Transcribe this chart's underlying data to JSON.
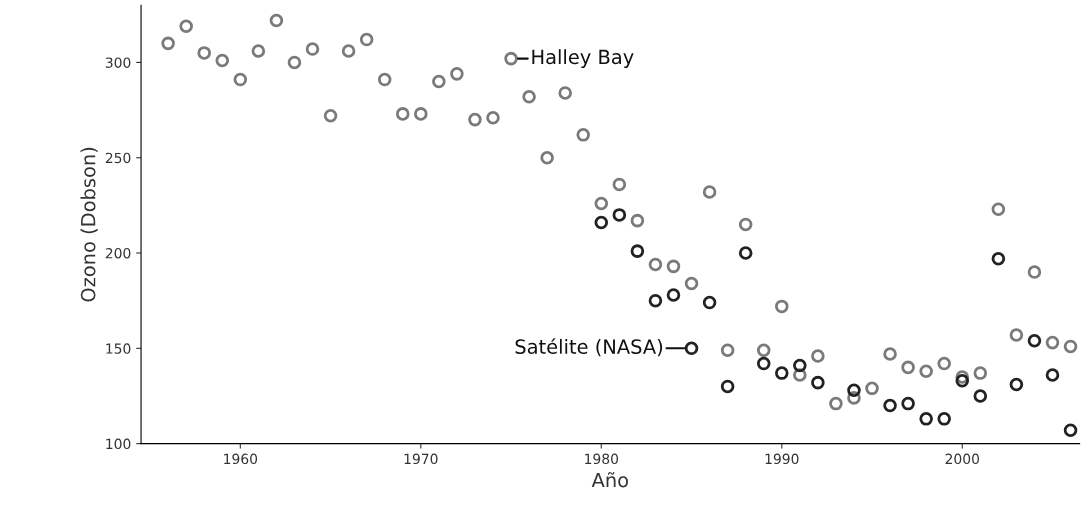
{
  "chart_data": {
    "type": "scatter",
    "xlabel": "Año",
    "ylabel": "Ozono (Dobson)",
    "xlim": [
      1954.5,
      2006.5
    ],
    "xticks": [
      1960,
      1970,
      1980,
      1990,
      2000
    ],
    "ylim": [
      100,
      330
    ],
    "yticks": [
      100,
      150,
      200,
      250,
      300
    ],
    "grid": false,
    "legend": false,
    "marker": "circle",
    "series": [
      {
        "color": "#7a7a7a",
        "x": [
          1956,
          1957,
          1958,
          1959,
          1960,
          1961,
          1962,
          1963,
          1964,
          1965,
          1966,
          1967,
          1968,
          1969,
          1970,
          1971,
          1972,
          1973,
          1974,
          1975,
          1976,
          1977,
          1978,
          1979,
          1980,
          1981,
          1982,
          1983,
          1984,
          1985,
          1986,
          1987,
          1988,
          1989,
          1990,
          1991,
          1992,
          1993,
          1994,
          1995,
          1996,
          1997,
          1998,
          1999,
          2000,
          2001,
          2002,
          2003,
          2004,
          2005,
          2006
        ],
        "values": [
          310,
          319,
          305,
          301,
          291,
          306,
          322,
          300,
          307,
          272,
          306,
          312,
          291,
          273,
          273,
          290,
          294,
          270,
          271,
          302,
          282,
          250,
          284,
          262,
          226,
          236,
          217,
          194,
          193,
          184,
          232,
          149,
          215,
          149,
          172,
          136,
          146,
          121,
          124,
          129,
          147,
          140,
          138,
          142,
          135,
          137,
          223,
          157,
          190,
          153,
          151
        ]
      },
      {
        "color": "#222222",
        "x": [
          1980,
          1981,
          1982,
          1983,
          1984,
          1985,
          1986,
          1987,
          1988,
          1989,
          1990,
          1991,
          1992,
          1994,
          1996,
          1997,
          1998,
          1999,
          2000,
          2001,
          2002,
          2003,
          2004,
          2005,
          2006
        ],
        "values": [
          216,
          220,
          201,
          175,
          178,
          150,
          174,
          130,
          200,
          142,
          137,
          141,
          132,
          128,
          120,
          121,
          113,
          113,
          133,
          125,
          197,
          131,
          154,
          136,
          107
        ]
      }
    ],
    "annotations": [
      {
        "text": "Halley Bay",
        "x": 1975,
        "y": 302
      },
      {
        "text": "Satélite (NASA)",
        "x": 1985,
        "y": 150
      }
    ]
  }
}
